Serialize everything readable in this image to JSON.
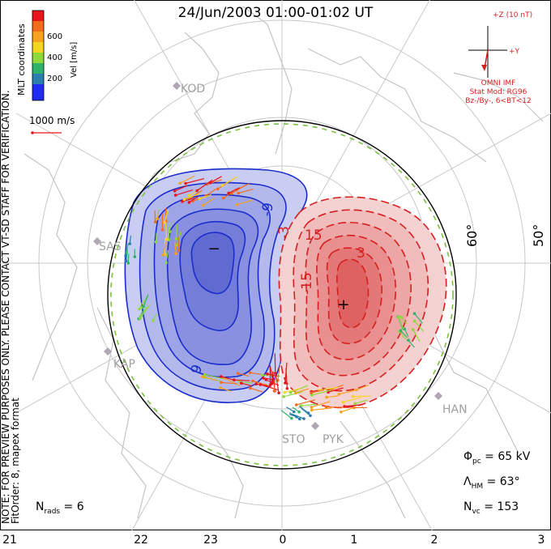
{
  "title": "24/Jun/2003 01:00-01:02 UT",
  "note_line1": "NOTE: FOR PREVIEW PURPOSES ONLY. PLEASE CONTACT VT-SD STAFF FOR VERIFICATION.",
  "note_line2": "FitOrder: 8, mapex format",
  "colorbar": {
    "title": "Vel [m/s]",
    "ticks": [
      "600",
      "400",
      "200"
    ],
    "colors": [
      "#e8141c",
      "#f36b1b",
      "#f6a21e",
      "#f5d523",
      "#8ed83a",
      "#2fb36b",
      "#2a7fae",
      "#1f2bf0"
    ]
  },
  "coord_label": "MLT coordinates",
  "scale_vector_label": "1000 m/s",
  "imf": {
    "z_label": "+Z (10 nT)",
    "y_label": "+Y",
    "omni": "OMNI IMF",
    "stat_mod": "Stat Mod: RG96",
    "condition": "Bz-/By-, 6<BT<12"
  },
  "latitude_labels": [
    "60°",
    "50°"
  ],
  "contour_labels": [
    "-9",
    "-3",
    "-15",
    "9",
    "15",
    "3"
  ],
  "potential_markers": {
    "min": "−",
    "max": "+"
  },
  "stations": [
    "KOD",
    "SAS",
    "KAP",
    "HAN",
    "STO",
    "PYK"
  ],
  "stats": {
    "nrads_label": "N",
    "nrads_sub": "rads",
    "nrads_value": "6",
    "phi_label": "Φ",
    "phi_sub": "pc",
    "phi_value": "65 kV",
    "lambda_label": "Λ",
    "lambda_sub": "HM",
    "lambda_value": "63°",
    "nvc_label": "N",
    "nvc_sub": "vc",
    "nvc_value": "153"
  },
  "mlt_hours": [
    "21",
    "22",
    "23",
    "0",
    "1",
    "2",
    "3"
  ],
  "colors": {
    "negative_cell": "#1a2dcc",
    "positive_cell": "#d61f1f",
    "grid": "#c8c8c8",
    "coast": "#c4c4c4",
    "boundary_green": "#7cc242"
  }
}
